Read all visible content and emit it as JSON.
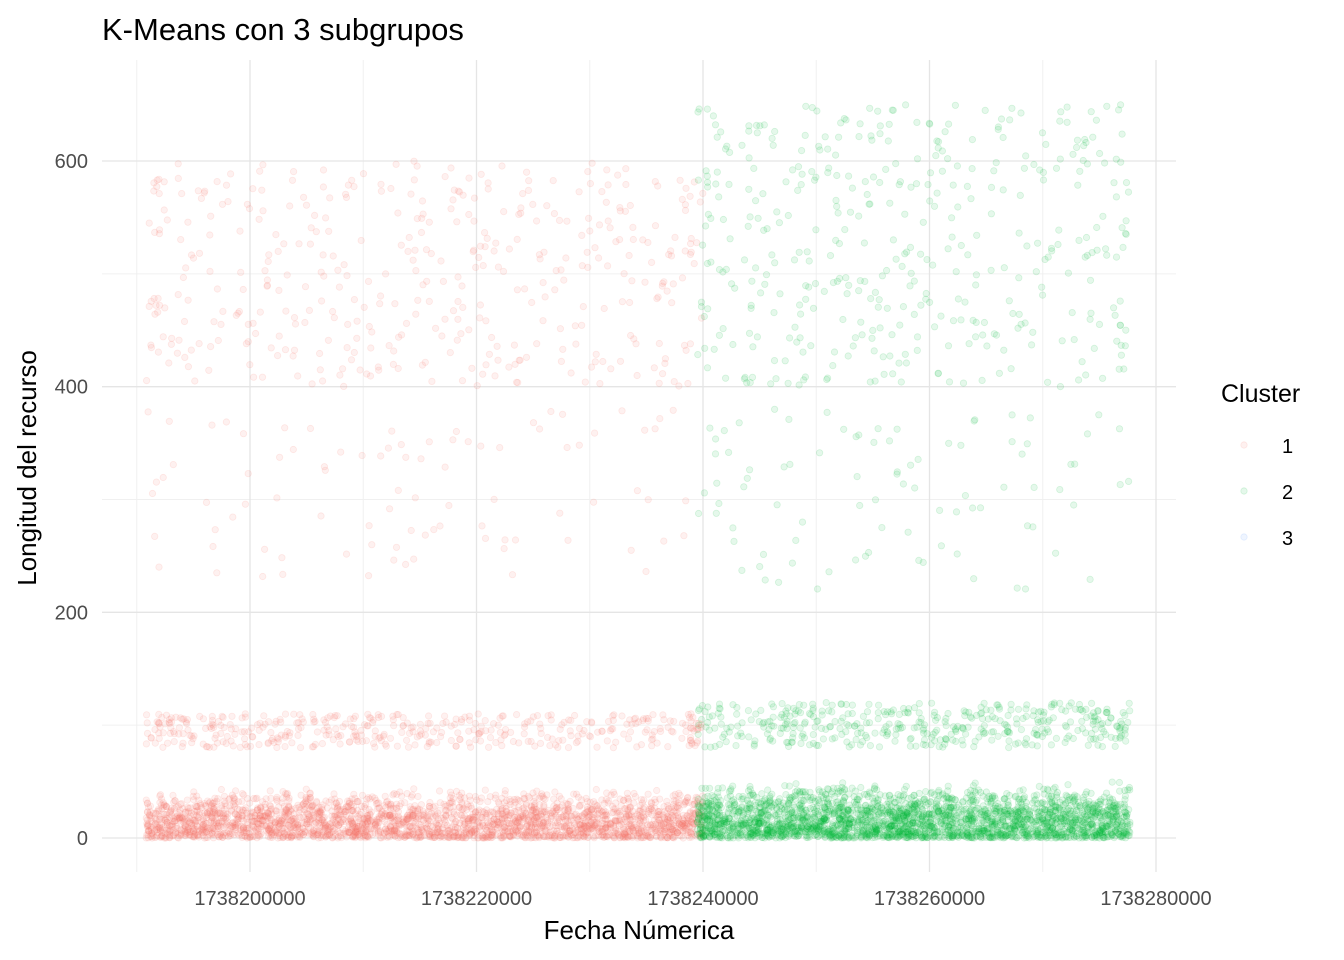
{
  "chart_data": {
    "type": "scatter",
    "title": "K-Means con 3 subgrupos",
    "xlabel": "Fecha Númerica",
    "ylabel": "Longitud del recurso",
    "xlim": [
      1738190800,
      1738277700
    ],
    "ylim": [
      0,
      650
    ],
    "x_ticks": [
      1738200000,
      1738220000,
      1738240000,
      1738260000,
      1738280000
    ],
    "x_tick_labels": [
      "1738200000",
      "1738220000",
      "1738240000",
      "1738260000",
      "1738280000"
    ],
    "y_ticks": [
      0,
      200,
      400,
      600
    ],
    "y_tick_labels": [
      "0",
      "200",
      "400",
      "600"
    ],
    "grid": true,
    "legend": {
      "title": "Cluster",
      "position": "right",
      "entries": [
        {
          "label": "1",
          "color": "#F8766D"
        },
        {
          "label": "2",
          "color": "#00BA38"
        },
        {
          "label": "3",
          "color": "#619CFF"
        }
      ]
    },
    "series": [
      {
        "label": "1",
        "color": "#F8766D",
        "point_alpha": 0.1,
        "x_range": [
          1738190800,
          1738240000
        ],
        "description_bands": [
          {
            "y_range": [
              0,
              45
            ],
            "density": "very high"
          },
          {
            "y_range": [
              80,
              110
            ],
            "density": "medium"
          },
          {
            "y_range": [
              230,
              380
            ],
            "density": "low"
          },
          {
            "y_range": [
              400,
              600
            ],
            "density": "medium"
          }
        ]
      },
      {
        "label": "2",
        "color": "#00BA38",
        "point_alpha": 0.1,
        "x_range": [
          1738239500,
          1738277700
        ],
        "description_bands": [
          {
            "y_range": [
              0,
              50
            ],
            "density": "very high"
          },
          {
            "y_range": [
              80,
              120
            ],
            "density": "medium"
          },
          {
            "y_range": [
              220,
              380
            ],
            "density": "low"
          },
          {
            "y_range": [
              400,
              650
            ],
            "density": "medium"
          }
        ]
      },
      {
        "label": "3",
        "color": "#619CFF",
        "point_alpha": 0.1,
        "x_range": [],
        "description_bands": []
      }
    ]
  }
}
